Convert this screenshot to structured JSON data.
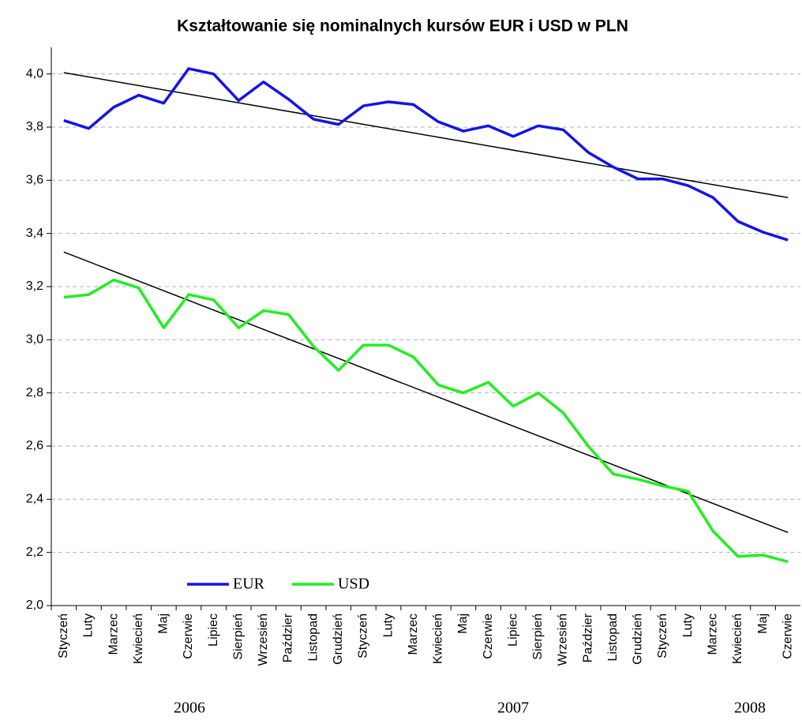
{
  "chart_data": {
    "type": "line",
    "title": "Kształtowanie się nominalnych kursów EUR i USD w PLN",
    "categories": [
      "Styczeń",
      "Luty",
      "Marzec",
      "Kwiecień",
      "Maj",
      "Czerwie",
      "Lipiec",
      "Sierpień",
      "Wrzesień",
      "Paździer",
      "Listopad",
      "Grudzień",
      "Styczeń",
      "Luty",
      "Marzec",
      "Kwiecień",
      "Maj",
      "Czerwie",
      "Lipiec",
      "Sierpień",
      "Wrzesień",
      "Paździer",
      "Listopad",
      "Grudzień",
      "Styczeń",
      "Luty",
      "Marzec",
      "Kwiecień",
      "Maj",
      "Czerwie"
    ],
    "years": [
      "2006",
      "2007",
      "2008"
    ],
    "series": [
      {
        "name": "EUR",
        "color": "#1414e6",
        "values": [
          3.825,
          3.795,
          3.875,
          3.92,
          3.89,
          4.02,
          4.0,
          3.9,
          3.97,
          3.905,
          3.83,
          3.81,
          3.88,
          3.895,
          3.885,
          3.82,
          3.785,
          3.805,
          3.765,
          3.805,
          3.79,
          3.705,
          3.65,
          3.605,
          3.605,
          3.58,
          3.535,
          3.445,
          3.405,
          3.375
        ],
        "trend": [
          4.005,
          3.535
        ]
      },
      {
        "name": "USD",
        "color": "#22ee22",
        "values": [
          3.16,
          3.17,
          3.225,
          3.195,
          3.045,
          3.17,
          3.15,
          3.045,
          3.11,
          3.095,
          2.975,
          2.885,
          2.98,
          2.98,
          2.935,
          2.83,
          2.8,
          2.84,
          2.75,
          2.8,
          2.725,
          2.6,
          2.495,
          2.475,
          2.45,
          2.43,
          2.28,
          2.185,
          2.19,
          2.165
        ],
        "trend": [
          3.33,
          2.275
        ]
      }
    ],
    "trend_color": "#000000",
    "ylim": [
      2.0,
      4.1
    ],
    "yticks": [
      {
        "value": 2.0,
        "label": "2,0"
      },
      {
        "value": 2.2,
        "label": "2,2"
      },
      {
        "value": 2.4,
        "label": "2,4"
      },
      {
        "value": 2.6,
        "label": "2,6"
      },
      {
        "value": 2.8,
        "label": "2,8"
      },
      {
        "value": 3.0,
        "label": "3,0"
      },
      {
        "value": 3.2,
        "label": "3,2"
      },
      {
        "value": 3.4,
        "label": "3,4"
      },
      {
        "value": 3.6,
        "label": "3,6"
      },
      {
        "value": 3.8,
        "label": "3,8"
      },
      {
        "value": 4.0,
        "label": "4,0"
      }
    ],
    "grid": true,
    "legend": "lower left"
  }
}
